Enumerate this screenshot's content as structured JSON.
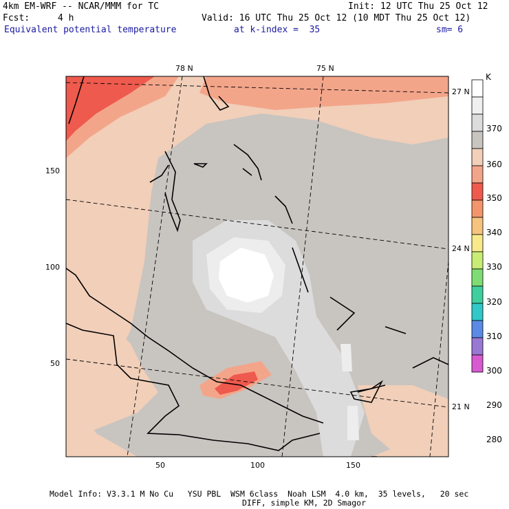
{
  "header": {
    "model": "4km EM-WRF -- NCAR/MMM for TC",
    "init": "Init: 12 UTC Thu 25 Oct 12",
    "fcst_label": "Fcst:",
    "fcst_value": "4 h",
    "valid": "Valid: 16 UTC Thu 25 Oct 12 (10 MDT Thu 25 Oct 12)",
    "field": "Equivalent potential temperature",
    "kindex": "at k-index =  35",
    "sm": "sm= 6"
  },
  "map": {
    "top_labels": [
      "78 N",
      "75 N"
    ],
    "right_labels": [
      "27 N",
      "24 N",
      "21 N"
    ],
    "y_ticks": [
      "150",
      "100",
      "50"
    ],
    "x_ticks": [
      "50",
      "100",
      "150"
    ],
    "colors": {
      "bg_peach": "#f1cfb9",
      "salmon": "#f3a58a",
      "red": "#ee5a4d",
      "gray": "#c8c4c0",
      "light_gray": "#dcdcdc",
      "lighter": "#ededed",
      "white": "#ffffff"
    }
  },
  "colorbar": {
    "unit": "K",
    "labels": [
      "370",
      "360",
      "350",
      "340",
      "330",
      "320",
      "310",
      "300",
      "290",
      "280"
    ],
    "colors": [
      "#ffffff",
      "#f0f0f0",
      "#dcdcdc",
      "#c8c4c0",
      "#f1cfb9",
      "#f3a58a",
      "#ee5a4d",
      "#f3956c",
      "#f6c47e",
      "#f8ea8a",
      "#c9ec76",
      "#7fdc74",
      "#3fcf9e",
      "#30c8c8",
      "#5b8ae6",
      "#9978d4",
      "#d85ad0"
    ]
  },
  "footer": {
    "line1": "Model Info: V3.3.1 M No Cu   YSU PBL  WSM 6class  Noah LSM  4.0 km,  35 levels,   20 sec",
    "line2": "DIFF, simple KM, 2D Smagor"
  }
}
